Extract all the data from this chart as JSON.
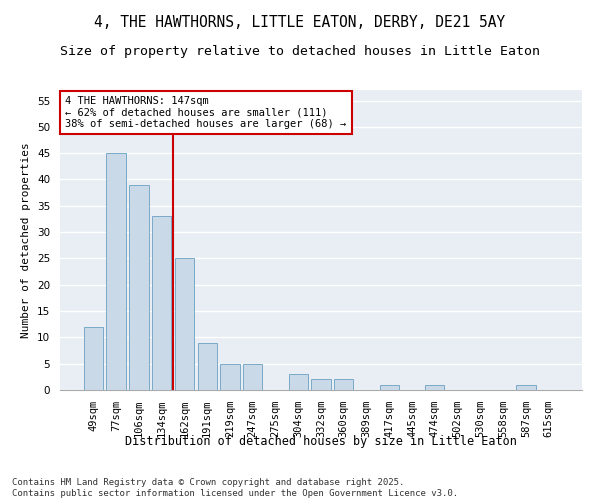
{
  "title": "4, THE HAWTHORNS, LITTLE EATON, DERBY, DE21 5AY",
  "subtitle": "Size of property relative to detached houses in Little Eaton",
  "xlabel": "Distribution of detached houses by size in Little Eaton",
  "ylabel": "Number of detached properties",
  "categories": [
    "49sqm",
    "77sqm",
    "106sqm",
    "134sqm",
    "162sqm",
    "191sqm",
    "219sqm",
    "247sqm",
    "275sqm",
    "304sqm",
    "332sqm",
    "360sqm",
    "389sqm",
    "417sqm",
    "445sqm",
    "474sqm",
    "502sqm",
    "530sqm",
    "558sqm",
    "587sqm",
    "615sqm"
  ],
  "values": [
    12,
    45,
    39,
    33,
    25,
    9,
    5,
    5,
    0,
    3,
    2,
    2,
    0,
    1,
    0,
    1,
    0,
    0,
    0,
    1,
    0
  ],
  "bar_color": "#c9d9e8",
  "bar_edge_color": "#7aaac8",
  "vline_x": 3.5,
  "vline_color": "#cc0000",
  "annotation_text": "4 THE HAWTHORNS: 147sqm\n← 62% of detached houses are smaller (111)\n38% of semi-detached houses are larger (68) →",
  "annotation_box_color": "white",
  "annotation_box_edge": "#cc0000",
  "ylim": [
    0,
    57
  ],
  "yticks": [
    0,
    5,
    10,
    15,
    20,
    25,
    30,
    35,
    40,
    45,
    50,
    55
  ],
  "background_color": "#e8eef4",
  "grid_color": "white",
  "footer": "Contains HM Land Registry data © Crown copyright and database right 2025.\nContains public sector information licensed under the Open Government Licence v3.0.",
  "title_fontsize": 10.5,
  "subtitle_fontsize": 9.5,
  "xlabel_fontsize": 8.5,
  "ylabel_fontsize": 8,
  "tick_fontsize": 7.5,
  "annotation_fontsize": 7.5,
  "footer_fontsize": 6.5
}
